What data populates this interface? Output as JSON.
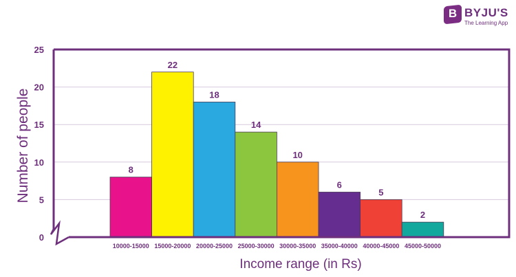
{
  "brand": {
    "mark": "B",
    "name": "BYJU'S",
    "tagline": "The Learning App",
    "color": "#7b2c83"
  },
  "chart_data": {
    "type": "bar",
    "categories": [
      "10000-15000",
      "15000-20000",
      "20000-25000",
      "25000-30000",
      "30000-35000",
      "35000-40000",
      "40000-45000",
      "45000-50000"
    ],
    "values": [
      8,
      22,
      18,
      14,
      10,
      6,
      5,
      2
    ],
    "data_labels": [
      "8",
      "22",
      "18",
      "14",
      "10",
      "6",
      "5",
      "2"
    ],
    "colors": [
      "#e8128a",
      "#fff200",
      "#29a9e0",
      "#8cc63f",
      "#f7941d",
      "#662d91",
      "#ef4136",
      "#13a89e"
    ],
    "xlabel": "Income range (in Rs)",
    "ylabel": "Number of people",
    "ylim": [
      0,
      25
    ],
    "yticks": [
      0,
      5,
      10,
      15,
      20,
      25
    ],
    "ytick_labels": [
      "0",
      "5",
      "10",
      "15",
      "20",
      "25"
    ],
    "grid": true,
    "axis_break": true,
    "accent_color": "#6e2f7c",
    "grid_color": "#d7c9de"
  }
}
